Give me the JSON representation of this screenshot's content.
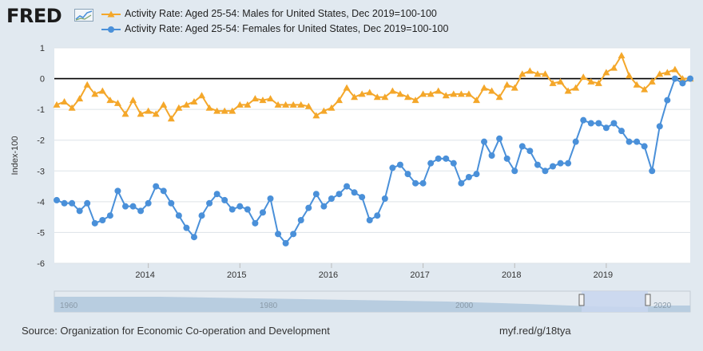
{
  "header": {
    "logo_text": "FRED"
  },
  "footer": {
    "source": "Source: Organization for Economic Co-operation and Development",
    "url": "myf.red/g/18tya"
  },
  "navigator": {
    "tick_labels": [
      "1960",
      "1980",
      "2000",
      "2020"
    ]
  },
  "chart_data": {
    "type": "line",
    "ylabel": "Index-100",
    "ylim": [
      -6,
      1
    ],
    "yticks": [
      1,
      0,
      -1,
      -2,
      -3,
      -4,
      -5,
      -6
    ],
    "xticks": [
      "2014",
      "2015",
      "2016",
      "2017",
      "2018",
      "2019"
    ],
    "x_start": "2013-01",
    "x_end": "2019-12",
    "grid": true,
    "legend_position": "top-left",
    "series": [
      {
        "name": "Activity Rate: Aged 25-54: Males for United States, Dec 2019=100-100",
        "color": "#f4a72a",
        "marker": "triangle",
        "values": [
          -0.85,
          -0.75,
          -0.95,
          -0.65,
          -0.2,
          -0.5,
          -0.4,
          -0.7,
          -0.8,
          -1.15,
          -0.7,
          -1.15,
          -1.05,
          -1.15,
          -0.85,
          -1.3,
          -0.95,
          -0.85,
          -0.75,
          -0.55,
          -0.95,
          -1.05,
          -1.05,
          -1.05,
          -0.85,
          -0.85,
          -0.65,
          -0.7,
          -0.65,
          -0.85,
          -0.85,
          -0.85,
          -0.85,
          -0.9,
          -1.2,
          -1.05,
          -0.95,
          -0.7,
          -0.3,
          -0.6,
          -0.5,
          -0.45,
          -0.6,
          -0.6,
          -0.4,
          -0.5,
          -0.6,
          -0.7,
          -0.5,
          -0.5,
          -0.4,
          -0.55,
          -0.5,
          -0.5,
          -0.5,
          -0.7,
          -0.3,
          -0.4,
          -0.6,
          -0.2,
          -0.3,
          0.15,
          0.25,
          0.15,
          0.15,
          -0.15,
          -0.1,
          -0.4,
          -0.3,
          0.05,
          -0.1,
          -0.15,
          0.2,
          0.35,
          0.75,
          0.1,
          -0.2,
          -0.35,
          -0.1,
          0.15,
          0.2,
          0.3,
          0.0,
          0.0
        ]
      },
      {
        "name": "Activity Rate: Aged 25-54: Females for United States, Dec 2019=100-100",
        "color": "#4a90d9",
        "marker": "circle",
        "values": [
          -3.95,
          -4.05,
          -4.05,
          -4.3,
          -4.05,
          -4.7,
          -4.6,
          -4.45,
          -3.65,
          -4.15,
          -4.15,
          -4.3,
          -4.05,
          -3.5,
          -3.65,
          -4.05,
          -4.45,
          -4.85,
          -5.15,
          -4.45,
          -4.05,
          -3.75,
          -3.95,
          -4.25,
          -4.15,
          -4.25,
          -4.7,
          -4.35,
          -3.9,
          -5.05,
          -5.35,
          -5.05,
          -4.6,
          -4.2,
          -3.75,
          -4.15,
          -3.9,
          -3.75,
          -3.5,
          -3.7,
          -3.85,
          -4.6,
          -4.45,
          -3.9,
          -2.9,
          -2.8,
          -3.1,
          -3.4,
          -3.4,
          -2.75,
          -2.6,
          -2.6,
          -2.75,
          -3.4,
          -3.2,
          -3.1,
          -2.05,
          -2.5,
          -1.95,
          -2.6,
          -3.0,
          -2.2,
          -2.35,
          -2.8,
          -3.0,
          -2.85,
          -2.75,
          -2.75,
          -2.05,
          -1.35,
          -1.45,
          -1.45,
          -1.6,
          -1.45,
          -1.7,
          -2.05,
          -2.05,
          -2.2,
          -3.0,
          -1.55,
          -0.7,
          0.0,
          -0.15,
          0.0
        ]
      }
    ]
  }
}
